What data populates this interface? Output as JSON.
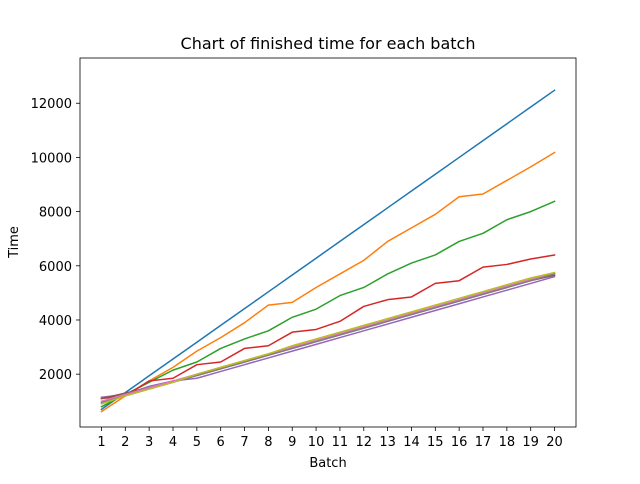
{
  "chart_data": {
    "type": "line",
    "title": "Chart of finished time for each batch",
    "xlabel": "Batch",
    "ylabel": "Time",
    "x": [
      1,
      2,
      3,
      4,
      5,
      6,
      7,
      8,
      9,
      10,
      11,
      12,
      13,
      14,
      15,
      16,
      17,
      18,
      19,
      20
    ],
    "xlim": [
      0.1,
      20.9
    ],
    "ylim": [
      50,
      13670
    ],
    "yticks": [
      2000,
      4000,
      6000,
      8000,
      10000,
      12000
    ],
    "grid": false,
    "series": [
      {
        "color": "#1f77b4",
        "values": [
          700,
          1320,
          1940,
          2560,
          3180,
          3800,
          4420,
          5040,
          5660,
          6280,
          6900,
          7520,
          8140,
          8760,
          9380,
          10000,
          10620,
          11240,
          11860,
          12480
        ]
      },
      {
        "color": "#ff7f0e",
        "values": [
          620,
          1200,
          1750,
          2250,
          2850,
          3350,
          3900,
          4550,
          4650,
          5200,
          5700,
          6200,
          6900,
          7400,
          7900,
          8550,
          8650,
          9150,
          9650,
          10180
        ]
      },
      {
        "color": "#2ca02c",
        "values": [
          800,
          1250,
          1700,
          2150,
          2450,
          2950,
          3300,
          3600,
          4100,
          4400,
          4900,
          5200,
          5700,
          6100,
          6400,
          6900,
          7200,
          7700,
          8000,
          8380
        ]
      },
      {
        "color": "#d62728",
        "values": [
          1100,
          1200,
          1750,
          1850,
          2350,
          2450,
          2950,
          3050,
          3550,
          3650,
          3950,
          4500,
          4750,
          4850,
          5350,
          5450,
          5950,
          6050,
          6250,
          6400
        ]
      },
      {
        "color": "#9467bd",
        "values": [
          1150,
          1250,
          1550,
          1750,
          1850,
          2100,
          2350,
          2600,
          2850,
          3100,
          3350,
          3600,
          3850,
          4100,
          4350,
          4600,
          4850,
          5100,
          5350,
          5600
        ]
      },
      {
        "color": "#8c564b",
        "values": [
          1100,
          1300,
          1500,
          1750,
          1950,
          2200,
          2450,
          2700,
          2950,
          3200,
          3450,
          3700,
          3950,
          4200,
          4450,
          4700,
          4950,
          5200,
          5450,
          5650
        ]
      },
      {
        "color": "#e377c2",
        "values": [
          1000,
          1250,
          1500,
          1750,
          2000,
          2250,
          2500,
          2750,
          3000,
          3250,
          3500,
          3750,
          4000,
          4250,
          4500,
          4750,
          5000,
          5250,
          5500,
          5700
        ]
      },
      {
        "color": "#7f7f7f",
        "values": [
          950,
          1200,
          1450,
          1700,
          1950,
          2200,
          2450,
          2700,
          2950,
          3200,
          3450,
          3700,
          3950,
          4200,
          4450,
          4700,
          4950,
          5200,
          5450,
          5700
        ]
      },
      {
        "color": "#bcbd22",
        "values": [
          900,
          1200,
          1450,
          1700,
          2000,
          2250,
          2500,
          2750,
          3050,
          3300,
          3550,
          3800,
          4050,
          4300,
          4550,
          4800,
          5050,
          5300,
          5550,
          5750
        ]
      }
    ]
  }
}
